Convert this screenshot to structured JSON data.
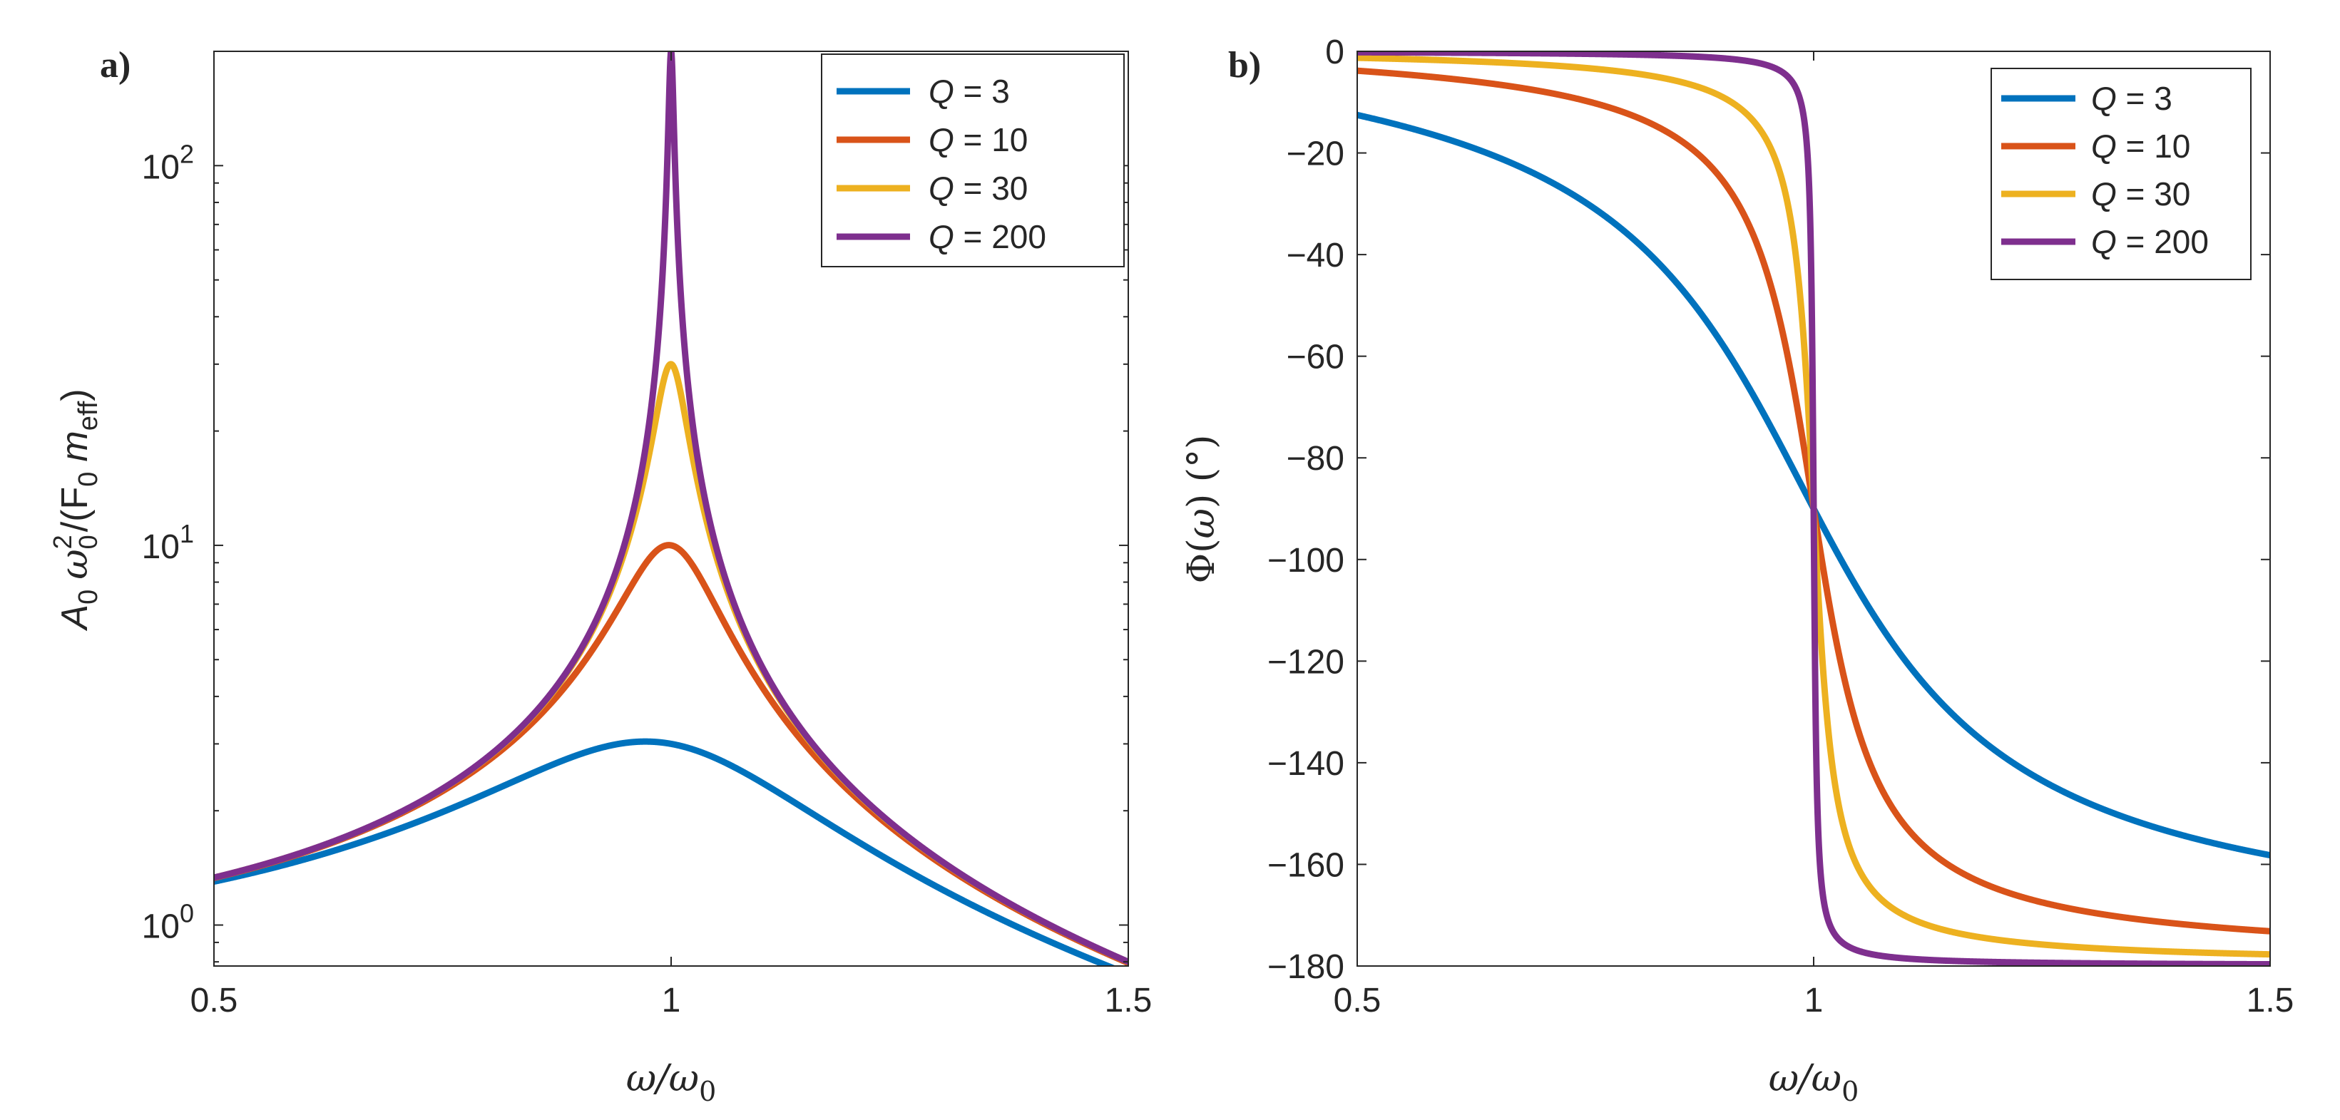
{
  "colors": {
    "q3": "#0072BD",
    "q10": "#D95319",
    "q30": "#EDB120",
    "q200": "#7E2F8E",
    "axis": "#262626",
    "background": "#ffffff"
  },
  "chart_data": [
    {
      "panel_label": "a)",
      "type": "line",
      "title": "",
      "xlabel": "ω/ω0",
      "ylabel": "A0 ω0²/(F0 meff)",
      "xlabel_parts": {
        "main": "ω/ω",
        "sub": "0"
      },
      "ylabel_parts": {
        "a": "A",
        "a_sub": "0",
        "w": "ω",
        "w_sup": "2",
        "w_sub": "0",
        "f": "/(F",
        "f_sub": "0",
        "m": "m",
        "m_sub": "eff",
        "close": ")"
      },
      "xlim": [
        0.5,
        1.5
      ],
      "ylim": [
        0.78,
        200
      ],
      "yscale": "log",
      "grid": false,
      "legend_position": "top-right",
      "x_ticks": [
        0.5,
        1,
        1.5
      ],
      "x_tick_labels": [
        "0.5",
        "1",
        "1.5"
      ],
      "y_ticks": [
        1,
        10,
        100
      ],
      "y_tick_labels": [
        {
          "base": "10",
          "exp": "0"
        },
        {
          "base": "10",
          "exp": "1"
        },
        {
          "base": "10",
          "exp": "2"
        }
      ],
      "model": "A = 1 / sqrt((1 - x^2)^2 + (x/Q)^2), x = ω/ω0",
      "series": [
        {
          "name": "Q = 3",
          "legend_letter": "Q",
          "legend_rest": " = 3",
          "Q": 3,
          "color": "#0072BD"
        },
        {
          "name": "Q = 10",
          "legend_letter": "Q",
          "legend_rest": " = 10",
          "Q": 10,
          "color": "#D95319"
        },
        {
          "name": "Q = 30",
          "legend_letter": "Q",
          "legend_rest": " = 30",
          "Q": 30,
          "color": "#EDB120"
        },
        {
          "name": "Q = 200",
          "legend_letter": "Q",
          "legend_rest": " = 200",
          "Q": 200,
          "color": "#7E2F8E"
        }
      ]
    },
    {
      "panel_label": "b)",
      "type": "line",
      "title": "",
      "xlabel": "ω/ω0",
      "ylabel": "Φ(ω) (°)",
      "xlabel_parts": {
        "main": "ω/ω",
        "sub": "0"
      },
      "ylabel_parts": {
        "phi": "Φ(",
        "w": "ω",
        "rest": ") (°)"
      },
      "xlim": [
        0.5,
        1.5
      ],
      "ylim": [
        -180,
        0
      ],
      "yscale": "linear",
      "grid": false,
      "legend_position": "top-right",
      "x_ticks": [
        0.5,
        1,
        1.5
      ],
      "x_tick_labels": [
        "0.5",
        "1",
        "1.5"
      ],
      "y_ticks": [
        0,
        -20,
        -40,
        -60,
        -80,
        -100,
        -120,
        -140,
        -160,
        -180
      ],
      "y_tick_labels": [
        "0",
        "−20",
        "−40",
        "−60",
        "−80",
        "−100",
        "−120",
        "−140",
        "−160",
        "−180"
      ],
      "model": "Φ = -atan2(x/Q, 1 - x^2) in degrees, x = ω/ω0",
      "series": [
        {
          "name": "Q = 3",
          "legend_letter": "Q",
          "legend_rest": " = 3",
          "Q": 3,
          "color": "#0072BD"
        },
        {
          "name": "Q = 10",
          "legend_letter": "Q",
          "legend_rest": " = 10",
          "Q": 10,
          "color": "#D95319"
        },
        {
          "name": "Q = 30",
          "legend_letter": "Q",
          "legend_rest": " = 30",
          "Q": 30,
          "color": "#EDB120"
        },
        {
          "name": "Q = 200",
          "legend_letter": "Q",
          "legend_rest": " = 200",
          "Q": 200,
          "color": "#7E2F8E"
        }
      ]
    }
  ]
}
